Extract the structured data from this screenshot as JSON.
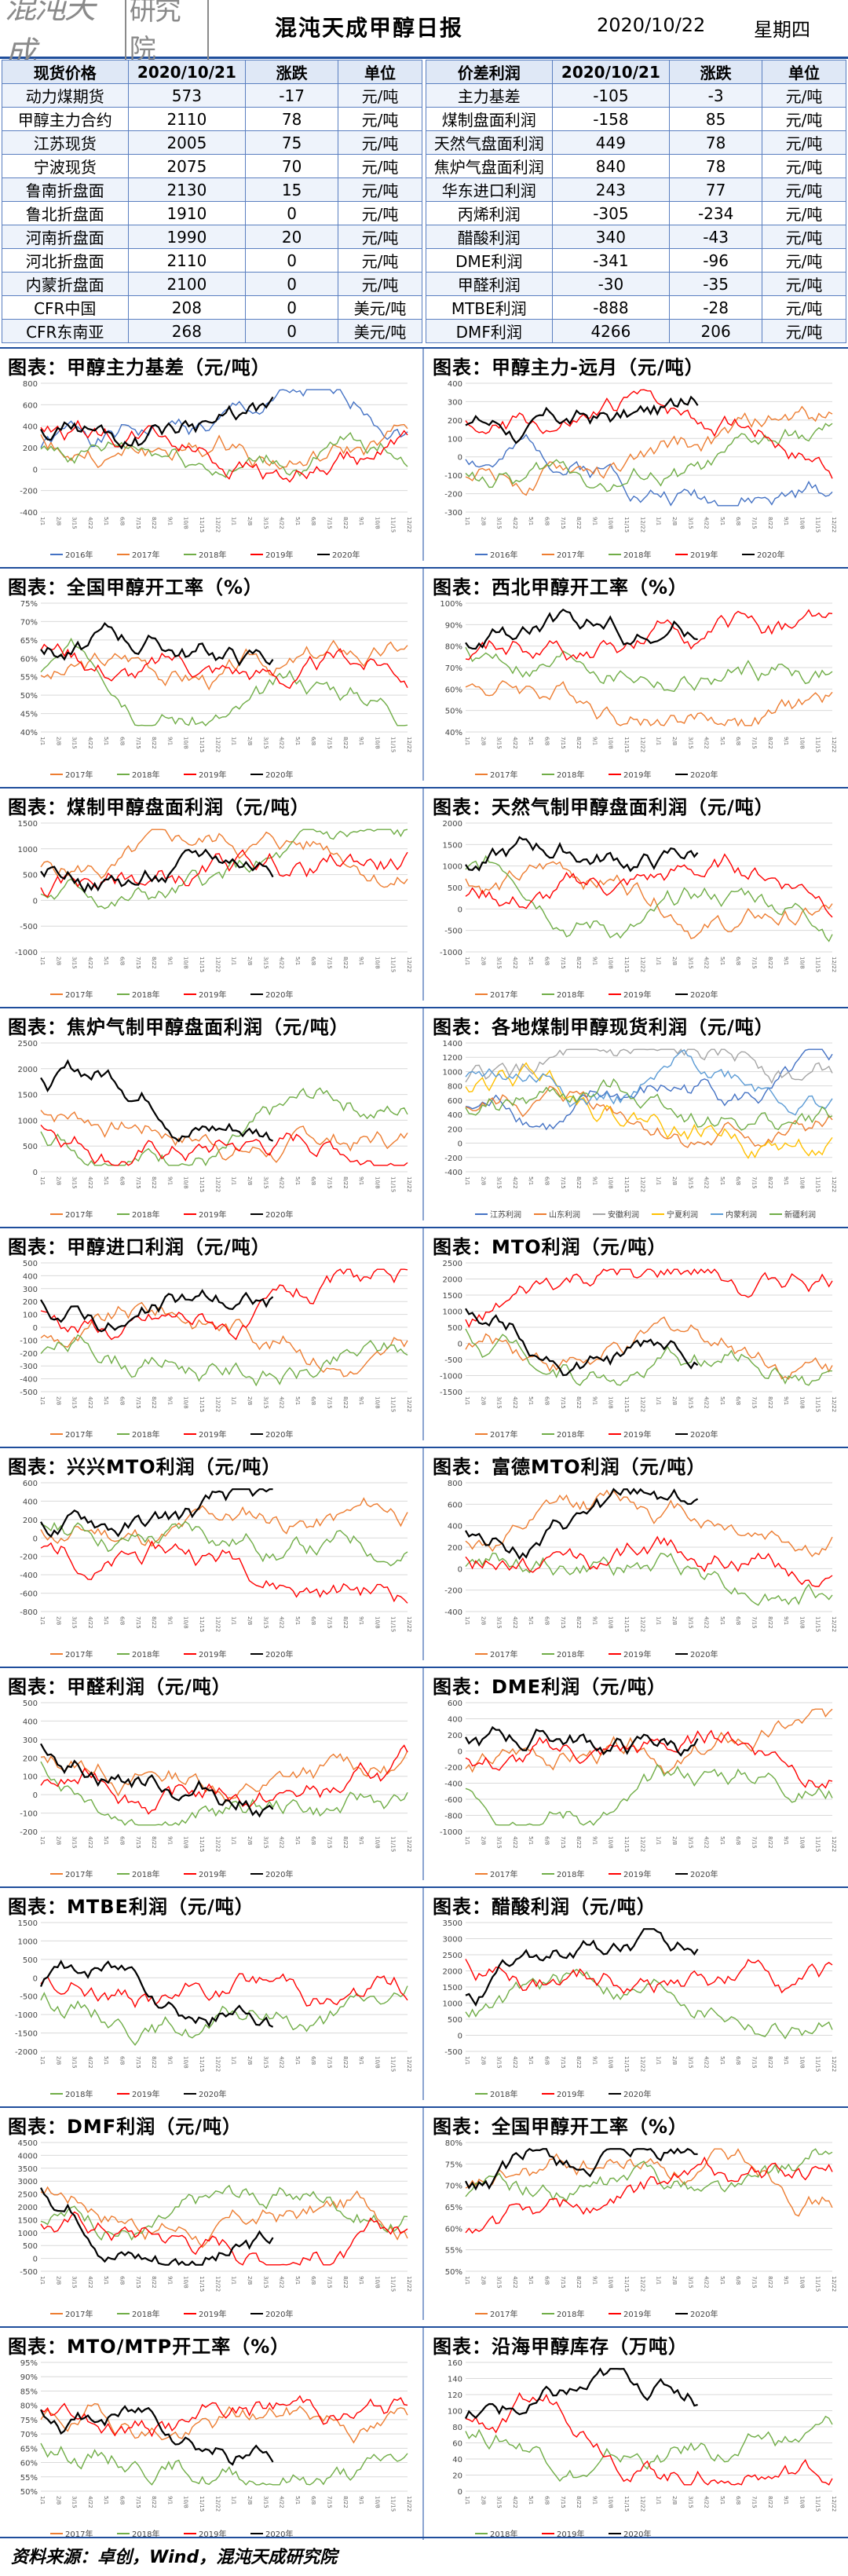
{
  "header": {
    "logo_main": "混沌天成",
    "logo_box": "研究院",
    "title": "混沌天成甲醇日报",
    "date": "2020/10/22",
    "weekday": "星期四"
  },
  "left_table": {
    "headers": [
      "现货价格",
      "2020/10/21",
      "涨跌",
      "单位"
    ],
    "rows": [
      [
        "动力煤期货",
        "573",
        "-17",
        "元/吨"
      ],
      [
        "甲醇主力合约",
        "2110",
        "78",
        "元/吨"
      ],
      [
        "江苏现货",
        "2005",
        "75",
        "元/吨"
      ],
      [
        "宁波现货",
        "2075",
        "70",
        "元/吨"
      ],
      [
        "鲁南折盘面",
        "2130",
        "15",
        "元/吨"
      ],
      [
        "鲁北折盘面",
        "1910",
        "0",
        "元/吨"
      ],
      [
        "河南折盘面",
        "1990",
        "20",
        "元/吨"
      ],
      [
        "河北折盘面",
        "2110",
        "0",
        "元/吨"
      ],
      [
        "内蒙折盘面",
        "2100",
        "0",
        "元/吨"
      ],
      [
        "CFR中国",
        "208",
        "0",
        "美元/吨"
      ],
      [
        "CFR东南亚",
        "268",
        "0",
        "美元/吨"
      ]
    ]
  },
  "right_table": {
    "headers": [
      "价差利润",
      "2020/10/21",
      "涨跌",
      "单位"
    ],
    "rows": [
      [
        "主力基差",
        "-105",
        "-3",
        "元/吨"
      ],
      [
        "煤制盘面利润",
        "-158",
        "85",
        "元/吨"
      ],
      [
        "天然气盘面利润",
        "449",
        "78",
        "元/吨"
      ],
      [
        "焦炉气盘面利润",
        "840",
        "78",
        "元/吨"
      ],
      [
        "华东进口利润",
        "243",
        "77",
        "元/吨"
      ],
      [
        "丙烯利润",
        "-305",
        "-234",
        "元/吨"
      ],
      [
        "醋酸利润",
        "340",
        "-43",
        "元/吨"
      ],
      [
        "DME利润",
        "-341",
        "-96",
        "元/吨"
      ],
      [
        "甲醛利润",
        "-30",
        "-35",
        "元/吨"
      ],
      [
        "MTBE利润",
        "-888",
        "-28",
        "元/吨"
      ],
      [
        "DMF利润",
        "4266",
        "206",
        "元/吨"
      ]
    ]
  },
  "colors": {
    "2016年": "#4472c4",
    "2017年": "#ed7d31",
    "2018年": "#70ad47",
    "2019年": "#ff0000",
    "2020年": "#000000"
  },
  "charts": [
    {
      "title": "图表：甲醇主力基差（元/吨）",
      "yticks": [
        "800",
        "600",
        "400",
        "200",
        "0",
        "-200",
        "-400"
      ],
      "legend": [
        "2016年",
        "2017年",
        "2018年",
        "2019年",
        "2020年"
      ],
      "seed": 1,
      "yrange": [
        -400,
        800
      ]
    },
    {
      "title": "图表：甲醇主力-远月（元/吨）",
      "yticks": [
        "400",
        "300",
        "200",
        "100",
        "0",
        "-100",
        "-200",
        "-300"
      ],
      "legend": [
        "2016年",
        "2017年",
        "2018年",
        "2019年",
        "2020年"
      ],
      "seed": 2,
      "yrange": [
        -300,
        400
      ]
    },
    {
      "title": "图表：全国甲醇开工率（%）",
      "yticks": [
        "75%",
        "70%",
        "65%",
        "60%",
        "55%",
        "50%",
        "45%",
        "40%"
      ],
      "legend": [
        "2017年",
        "2018年",
        "2019年",
        "2020年"
      ],
      "seed": 3,
      "yrange": [
        40,
        75
      ]
    },
    {
      "title": "图表：西北甲醇开工率（%）",
      "yticks": [
        "100%",
        "90%",
        "80%",
        "70%",
        "60%",
        "50%",
        "40%"
      ],
      "legend": [
        "2017年",
        "2018年",
        "2019年",
        "2020年"
      ],
      "seed": 4,
      "yrange": [
        40,
        100
      ]
    },
    {
      "title": "图表：煤制甲醇盘面利润（元/吨）",
      "yticks": [
        "1500",
        "1000",
        "500",
        "0",
        "-500",
        "-1000"
      ],
      "legend": [
        "2017年",
        "2018年",
        "2019年",
        "2020年"
      ],
      "seed": 5,
      "yrange": [
        -1000,
        1500
      ]
    },
    {
      "title": "图表：天然气制甲醇盘面利润（元/吨）",
      "yticks": [
        "2000",
        "1500",
        "1000",
        "500",
        "0",
        "-500",
        "-1000"
      ],
      "legend": [
        "2017年",
        "2018年",
        "2019年",
        "2020年"
      ],
      "seed": 6,
      "yrange": [
        -1000,
        2000
      ]
    },
    {
      "title": "图表：焦炉气制甲醇盘面利润（元/吨）",
      "yticks": [
        "2500",
        "2000",
        "1500",
        "1000",
        "500",
        "0"
      ],
      "legend": [
        "2017年",
        "2018年",
        "2019年",
        "2020年"
      ],
      "seed": 7,
      "yrange": [
        0,
        2500
      ]
    },
    {
      "title": "图表：各地煤制甲醇现货利润（元/吨）",
      "yticks": [
        "1400",
        "1200",
        "1000",
        "800",
        "600",
        "400",
        "200",
        "0",
        "-200",
        "-400"
      ],
      "legend": [
        "江苏利润",
        "山东利润",
        "安徽利润",
        "宁夏利润",
        "内蒙利润",
        "新疆利润"
      ],
      "seed": 8,
      "yrange": [
        -400,
        1400
      ]
    },
    {
      "title": "图表：甲醇进口利润（元/吨）",
      "yticks": [
        "500",
        "400",
        "300",
        "200",
        "100",
        "0",
        "-100",
        "-200",
        "-300",
        "-400",
        "-500"
      ],
      "legend": [
        "2017年",
        "2018年",
        "2019年",
        "2020年"
      ],
      "seed": 9,
      "yrange": [
        -500,
        500
      ]
    },
    {
      "title": "图表：MTO利润（元/吨）",
      "yticks": [
        "2500",
        "2000",
        "1500",
        "1000",
        "500",
        "0",
        "-500",
        "-1000",
        "-1500"
      ],
      "legend": [
        "2017年",
        "2018年",
        "2019年",
        "2020年"
      ],
      "seed": 10,
      "yrange": [
        -1500,
        2500
      ]
    },
    {
      "title": "图表：兴兴MTO利润（元/吨）",
      "yticks": [
        "600",
        "400",
        "200",
        "0",
        "-200",
        "-400",
        "-600",
        "-800"
      ],
      "legend": [
        "2017年",
        "2018年",
        "2019年",
        "2020年"
      ],
      "seed": 11,
      "yrange": [
        -800,
        600
      ]
    },
    {
      "title": "图表：富德MTO利润（元/吨）",
      "yticks": [
        "800",
        "600",
        "400",
        "200",
        "0",
        "-200",
        "-400"
      ],
      "legend": [
        "2017年",
        "2018年",
        "2019年",
        "2020年"
      ],
      "seed": 12,
      "yrange": [
        -400,
        800
      ]
    },
    {
      "title": "图表：甲醛利润（元/吨）",
      "yticks": [
        "500",
        "400",
        "300",
        "200",
        "100",
        "0",
        "-100",
        "-200"
      ],
      "legend": [
        "2017年",
        "2018年",
        "2019年",
        "2020年"
      ],
      "seed": 13,
      "yrange": [
        -200,
        500
      ]
    },
    {
      "title": "图表：DME利润（元/吨）",
      "yticks": [
        "600",
        "400",
        "200",
        "0",
        "-200",
        "-400",
        "-600",
        "-800",
        "-1000"
      ],
      "legend": [
        "2017年",
        "2018年",
        "2019年",
        "2020年"
      ],
      "seed": 14,
      "yrange": [
        -1000,
        600
      ]
    },
    {
      "title": "图表：MTBE利润（元/吨）",
      "yticks": [
        "1500",
        "1000",
        "500",
        "0",
        "-500",
        "-1000",
        "-1500",
        "-2000"
      ],
      "legend": [
        "2018年",
        "2019年",
        "2020年"
      ],
      "seed": 15,
      "yrange": [
        -2000,
        1500
      ]
    },
    {
      "title": "图表：醋酸利润（元/吨）",
      "yticks": [
        "3500",
        "3000",
        "2500",
        "2000",
        "1500",
        "1000",
        "500",
        "0",
        "-500"
      ],
      "legend": [
        "2018年",
        "2019年",
        "2020年"
      ],
      "seed": 16,
      "yrange": [
        -500,
        3500
      ]
    },
    {
      "title": "图表：DMF利润（元/吨）",
      "yticks": [
        "4500",
        "4000",
        "3500",
        "3000",
        "2500",
        "2000",
        "1500",
        "1000",
        "500",
        "0",
        "-500"
      ],
      "legend": [
        "2017年",
        "2018年",
        "2019年",
        "2020年"
      ],
      "seed": 17,
      "yrange": [
        -500,
        4500
      ]
    },
    {
      "title": "图表：全国甲醇开工率（%）",
      "yticks": [
        "80%",
        "75%",
        "70%",
        "65%",
        "60%",
        "55%",
        "50%"
      ],
      "legend": [
        "2017年",
        "2018年",
        "2019年",
        "2020年"
      ],
      "seed": 18,
      "yrange": [
        50,
        80
      ]
    },
    {
      "title": "图表：MTO/MTP开工率（%）",
      "yticks": [
        "95%",
        "90%",
        "85%",
        "80%",
        "75%",
        "70%",
        "65%",
        "60%",
        "55%",
        "50%"
      ],
      "legend": [
        "2017年",
        "2018年",
        "2019年",
        "2020年"
      ],
      "seed": 19,
      "yrange": [
        50,
        95
      ]
    },
    {
      "title": "图表：沿海甲醇库存（万吨）",
      "yticks": [
        "160",
        "140",
        "120",
        "100",
        "80",
        "60",
        "40",
        "20",
        "0"
      ],
      "legend": [
        "2018年",
        "2019年",
        "2020年"
      ],
      "seed": 20,
      "yrange": [
        0,
        160
      ]
    }
  ],
  "footer": {
    "source": "资料来源：卓创，Wind，混沌天成研究院"
  }
}
